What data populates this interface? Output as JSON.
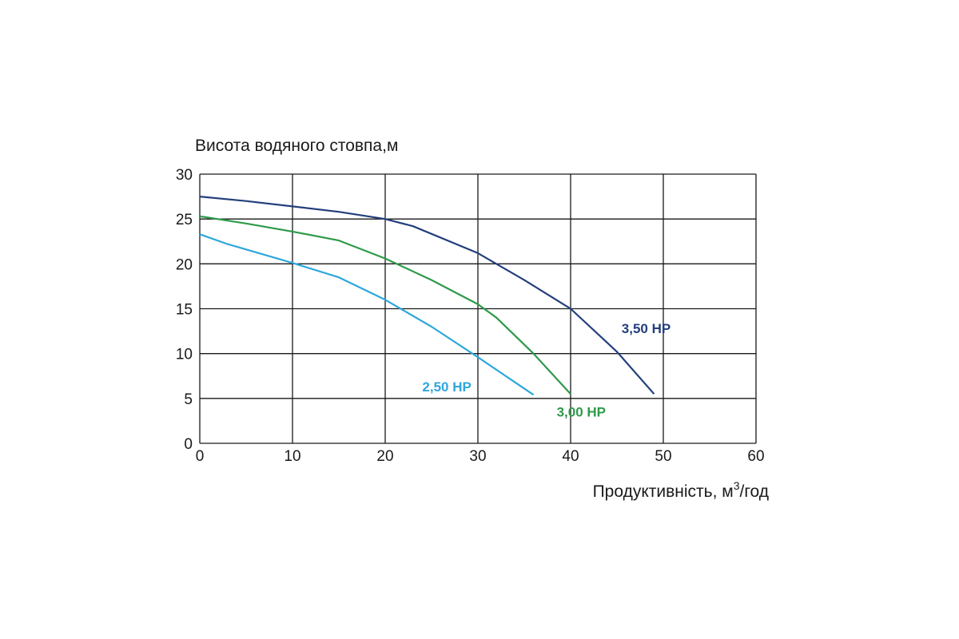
{
  "chart_data": {
    "type": "line",
    "ylabel": "Висота водяного стовпа,м",
    "xlabel_main": "Продуктивність, м",
    "xlabel_sup": "3",
    "xlabel_tail": "/год",
    "xlim": [
      0,
      60
    ],
    "ylim": [
      0,
      30
    ],
    "x_ticks": [
      "0",
      "10",
      "20",
      "30",
      "40",
      "50",
      "60"
    ],
    "y_ticks": [
      "0",
      "5",
      "10",
      "15",
      "20",
      "25",
      "30"
    ],
    "grid": true,
    "series": [
      {
        "name": "2,50 HP",
        "color": "#2ea7dc",
        "label_at": [
          24,
          5.8
        ],
        "points": [
          [
            0,
            23.3
          ],
          [
            3,
            22.2
          ],
          [
            10,
            20.1
          ],
          [
            15,
            18.5
          ],
          [
            20,
            16.0
          ],
          [
            25,
            13.0
          ],
          [
            30,
            9.6
          ],
          [
            36,
            5.4
          ]
        ]
      },
      {
        "name": "3,00 HP",
        "color": "#2e9a4a",
        "label_at": [
          38.5,
          3.0
        ],
        "points": [
          [
            0,
            25.3
          ],
          [
            5,
            24.5
          ],
          [
            10,
            23.6
          ],
          [
            15,
            22.6
          ],
          [
            20,
            20.6
          ],
          [
            25,
            18.2
          ],
          [
            30,
            15.5
          ],
          [
            32,
            14.0
          ],
          [
            36,
            10.0
          ],
          [
            40,
            5.5
          ]
        ]
      },
      {
        "name": "3,50 HP",
        "color": "#233f7c",
        "label_at": [
          45.5,
          12.3
        ],
        "points": [
          [
            0,
            27.5
          ],
          [
            5,
            27.0
          ],
          [
            10,
            26.4
          ],
          [
            15,
            25.8
          ],
          [
            20,
            25.0
          ],
          [
            23,
            24.2
          ],
          [
            30,
            21.2
          ],
          [
            35,
            18.2
          ],
          [
            40,
            15.0
          ],
          [
            45,
            10.2
          ],
          [
            49,
            5.5
          ]
        ]
      }
    ]
  }
}
